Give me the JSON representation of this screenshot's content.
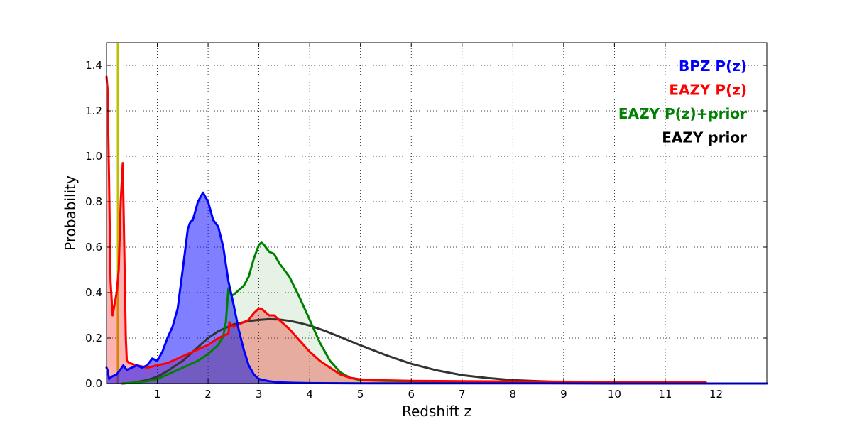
{
  "chart_data": {
    "type": "area",
    "title": "",
    "xlabel": "Redshift z",
    "ylabel": "Probability",
    "xlim": [
      0,
      13
    ],
    "ylim": [
      0,
      1.5
    ],
    "xticks": [
      1,
      2,
      3,
      4,
      5,
      6,
      7,
      8,
      9,
      10,
      11,
      12
    ],
    "yticks": [
      0.0,
      0.2,
      0.4,
      0.6,
      0.8,
      1.0,
      1.2,
      1.4
    ],
    "ytick_labels": [
      "0.0",
      "0.2",
      "0.4",
      "0.6",
      "0.8",
      "1.0",
      "1.2",
      "1.4"
    ],
    "grid": true,
    "legend_position": "top-right",
    "vline": {
      "x": 0.22,
      "color": "#bfbf00"
    },
    "series": [
      {
        "name": "BPZ P(z)",
        "color": "#0000ff",
        "filled": true,
        "x": [
          0.0,
          0.02,
          0.05,
          0.1,
          0.2,
          0.3,
          0.33,
          0.4,
          0.5,
          0.6,
          0.7,
          0.8,
          0.9,
          1.0,
          1.1,
          1.2,
          1.3,
          1.4,
          1.5,
          1.6,
          1.65,
          1.7,
          1.8,
          1.9,
          2.0,
          2.1,
          2.2,
          2.3,
          2.4,
          2.5,
          2.6,
          2.7,
          2.8,
          2.9,
          3.0,
          3.2,
          3.4,
          3.7,
          4.0,
          5.0,
          6.0,
          8.0,
          10.0,
          13.0
        ],
        "y": [
          0.07,
          0.06,
          0.02,
          0.03,
          0.04,
          0.07,
          0.08,
          0.06,
          0.07,
          0.08,
          0.07,
          0.08,
          0.11,
          0.1,
          0.14,
          0.2,
          0.25,
          0.33,
          0.5,
          0.68,
          0.71,
          0.72,
          0.8,
          0.84,
          0.8,
          0.72,
          0.69,
          0.6,
          0.45,
          0.35,
          0.24,
          0.15,
          0.08,
          0.04,
          0.02,
          0.01,
          0.005,
          0.003,
          0.002,
          0.001,
          0.001,
          0.001,
          0.0,
          0.0
        ]
      },
      {
        "name": "EAZY P(z)",
        "color": "#ff0000",
        "filled": true,
        "x": [
          0.0,
          0.02,
          0.05,
          0.08,
          0.12,
          0.16,
          0.2,
          0.24,
          0.28,
          0.32,
          0.35,
          0.38,
          0.4,
          0.45,
          0.6,
          0.8,
          1.0,
          1.2,
          1.5,
          1.8,
          2.0,
          2.2,
          2.4,
          2.42,
          2.45,
          2.5,
          2.6,
          2.7,
          2.8,
          2.9,
          3.0,
          3.05,
          3.1,
          3.2,
          3.3,
          3.4,
          3.6,
          3.8,
          4.0,
          4.2,
          4.4,
          4.6,
          4.8,
          5.0,
          5.5,
          6.0,
          7.0,
          8.0,
          9.0,
          10.0,
          11.0,
          11.8
        ],
        "y": [
          1.35,
          1.3,
          0.9,
          0.45,
          0.3,
          0.35,
          0.4,
          0.5,
          0.8,
          0.97,
          0.6,
          0.2,
          0.1,
          0.09,
          0.08,
          0.07,
          0.08,
          0.09,
          0.12,
          0.15,
          0.17,
          0.2,
          0.22,
          0.27,
          0.26,
          0.25,
          0.26,
          0.27,
          0.28,
          0.31,
          0.33,
          0.33,
          0.32,
          0.3,
          0.3,
          0.28,
          0.24,
          0.19,
          0.14,
          0.1,
          0.07,
          0.04,
          0.025,
          0.018,
          0.014,
          0.012,
          0.01,
          0.009,
          0.008,
          0.007,
          0.006,
          0.005
        ]
      },
      {
        "name": "EAZY P(z)+prior",
        "color": "#008000",
        "filled": true,
        "x": [
          0.3,
          0.5,
          0.8,
          1.0,
          1.2,
          1.4,
          1.6,
          1.8,
          2.0,
          2.2,
          2.3,
          2.35,
          2.38,
          2.4,
          2.42,
          2.45,
          2.5,
          2.6,
          2.7,
          2.8,
          2.9,
          3.0,
          3.05,
          3.1,
          3.2,
          3.3,
          3.4,
          3.5,
          3.6,
          3.8,
          4.0,
          4.2,
          4.4,
          4.6,
          4.8,
          5.0,
          5.5,
          6.0,
          7.0,
          8.0,
          9.0,
          10.0,
          10.5
        ],
        "y": [
          0.0,
          0.003,
          0.01,
          0.02,
          0.04,
          0.06,
          0.08,
          0.1,
          0.13,
          0.17,
          0.21,
          0.27,
          0.36,
          0.42,
          0.41,
          0.39,
          0.39,
          0.41,
          0.43,
          0.47,
          0.55,
          0.61,
          0.62,
          0.61,
          0.58,
          0.57,
          0.53,
          0.5,
          0.47,
          0.38,
          0.28,
          0.18,
          0.1,
          0.05,
          0.025,
          0.015,
          0.012,
          0.01,
          0.007,
          0.005,
          0.003,
          0.002,
          0.001
        ]
      },
      {
        "name": "EAZY prior",
        "color": "#333333",
        "filled": false,
        "x": [
          0.3,
          0.5,
          0.8,
          1.0,
          1.2,
          1.5,
          1.8,
          2.0,
          2.2,
          2.5,
          2.8,
          3.0,
          3.2,
          3.4,
          3.6,
          3.8,
          4.0,
          4.3,
          4.6,
          5.0,
          5.5,
          6.0,
          6.5,
          7.0,
          7.5,
          8.0,
          9.0,
          10.0,
          11.0
        ],
        "y": [
          0.0,
          0.003,
          0.015,
          0.03,
          0.055,
          0.1,
          0.16,
          0.2,
          0.23,
          0.26,
          0.275,
          0.28,
          0.283,
          0.282,
          0.276,
          0.267,
          0.255,
          0.232,
          0.205,
          0.168,
          0.125,
          0.087,
          0.058,
          0.037,
          0.024,
          0.015,
          0.006,
          0.003,
          0.001
        ]
      }
    ]
  }
}
